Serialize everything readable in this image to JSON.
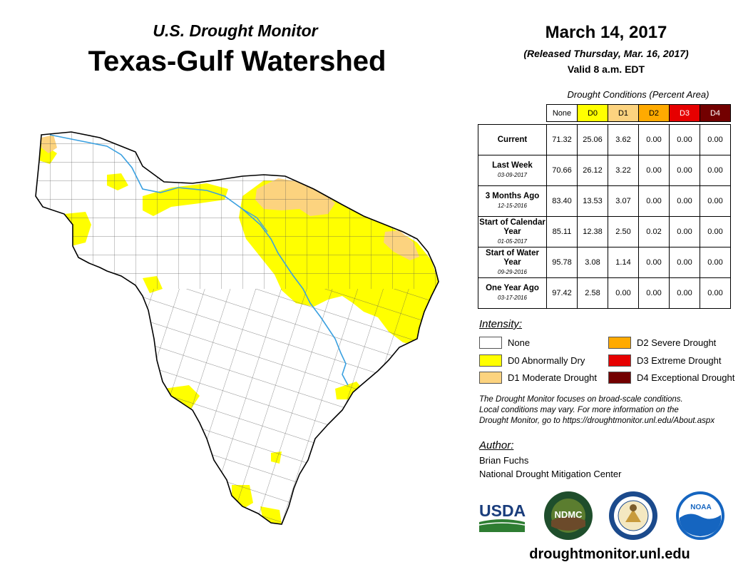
{
  "header": {
    "supertitle": "U.S. Drought Monitor",
    "title": "Texas-Gulf Watershed",
    "date": "March 14, 2017",
    "released": "(Released Thursday, Mar. 16, 2017)",
    "valid": "Valid 8 a.m. EDT"
  },
  "conditions_table": {
    "caption": "Drought Conditions (Percent Area)",
    "columns": [
      "None",
      "D0",
      "D1",
      "D2",
      "D3",
      "D4"
    ],
    "column_colors": [
      "#ffffff",
      "#ffff00",
      "#fcd37f",
      "#ffaa00",
      "#e60000",
      "#730000"
    ],
    "column_text_colors": [
      "#000000",
      "#000000",
      "#000000",
      "#000000",
      "#ffffff",
      "#ffffff"
    ],
    "rows": [
      {
        "label": "Current",
        "date": "",
        "values": [
          "71.32",
          "25.06",
          "3.62",
          "0.00",
          "0.00",
          "0.00"
        ]
      },
      {
        "label": "Last Week",
        "date": "03-09-2017",
        "values": [
          "70.66",
          "26.12",
          "3.22",
          "0.00",
          "0.00",
          "0.00"
        ]
      },
      {
        "label": "3 Months Ago",
        "date": "12-15-2016",
        "values": [
          "83.40",
          "13.53",
          "3.07",
          "0.00",
          "0.00",
          "0.00"
        ]
      },
      {
        "label": "Start of Calendar Year",
        "date": "01-05-2017",
        "values": [
          "85.11",
          "12.38",
          "2.50",
          "0.02",
          "0.00",
          "0.00"
        ]
      },
      {
        "label": "Start of Water Year",
        "date": "09-29-2016",
        "values": [
          "95.78",
          "3.08",
          "1.14",
          "0.00",
          "0.00",
          "0.00"
        ]
      },
      {
        "label": "One Year Ago",
        "date": "03-17-2016",
        "values": [
          "97.42",
          "2.58",
          "0.00",
          "0.00",
          "0.00",
          "0.00"
        ]
      }
    ]
  },
  "legend": {
    "title": "Intensity:",
    "items": [
      {
        "label": "None",
        "color": "#ffffff"
      },
      {
        "label": "D0 Abnormally Dry",
        "color": "#ffff00"
      },
      {
        "label": "D1 Moderate Drought",
        "color": "#fcd37f"
      },
      {
        "label": "D2 Severe Drought",
        "color": "#ffaa00"
      },
      {
        "label": "D3 Extreme Drought",
        "color": "#e60000"
      },
      {
        "label": "D4 Exceptional Drought",
        "color": "#730000"
      }
    ]
  },
  "note": {
    "line1": "The Drought Monitor focuses on broad-scale conditions.",
    "line2": "Local conditions may vary. For more information on the",
    "line3": "Drought Monitor, go to https://droughtmonitor.unl.edu/About.aspx"
  },
  "author": {
    "label": "Author:",
    "name": "Brian Fuchs",
    "org": "National Drought Mitigation Center"
  },
  "logos": {
    "usda": "USDA",
    "ndmc": "NDMC",
    "noaa": "NOAA"
  },
  "url": "droughtmonitor.unl.edu",
  "colors": {
    "none": "#ffffff",
    "d0": "#ffff00",
    "d1": "#fcd37f",
    "river": "#3aa0e0",
    "county_line": "#444444"
  }
}
